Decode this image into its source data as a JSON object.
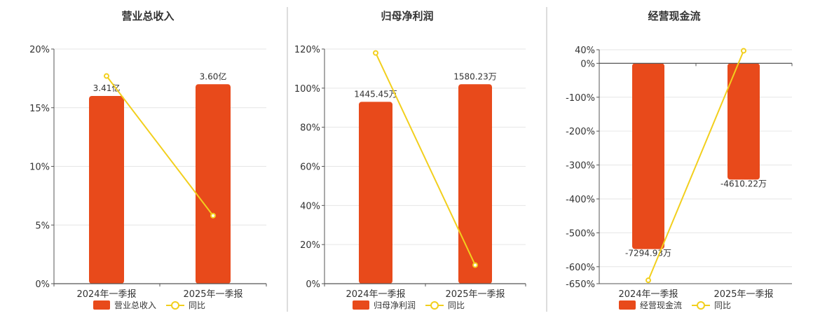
{
  "colors": {
    "bar": "#E84A1B",
    "line": "#F2CF1D",
    "grid": "#E6E6E6",
    "axis": "#555555",
    "divider": "#BBBBBB"
  },
  "chart_data": [
    {
      "type": "bar",
      "title": "营业总收入",
      "categories": [
        "2024年一季报",
        "2025年一季报"
      ],
      "y_ticks": [
        "0%",
        "5%",
        "10%",
        "15%",
        "20%"
      ],
      "ylim": [
        0,
        20
      ],
      "series": [
        {
          "name": "营业总收入",
          "kind": "bar",
          "values": [
            16.0,
            17.0
          ],
          "labels": [
            "3.41亿",
            "3.60亿"
          ]
        },
        {
          "name": "同比",
          "kind": "line",
          "values": [
            17.7,
            5.8
          ]
        }
      ],
      "legend": "bottom"
    },
    {
      "type": "bar",
      "title": "归母净利润",
      "categories": [
        "2024年一季报",
        "2025年一季报"
      ],
      "y_ticks": [
        "0%",
        "20%",
        "40%",
        "60%",
        "80%",
        "100%",
        "120%"
      ],
      "ylim": [
        0,
        120
      ],
      "series": [
        {
          "name": "归母净利润",
          "kind": "bar",
          "values": [
            93.0,
            102.0
          ],
          "labels": [
            "1445.45万",
            "1580.23万"
          ]
        },
        {
          "name": "同比",
          "kind": "line",
          "values": [
            118.0,
            9.5
          ]
        }
      ],
      "legend": "bottom"
    },
    {
      "type": "bar",
      "title": "经营现金流",
      "categories": [
        "2024年一季报",
        "2025年一季报"
      ],
      "y_ticks": [
        "-650%",
        "-600%",
        "-500%",
        "-400%",
        "-300%",
        "-200%",
        "-100%",
        "0%",
        "40%"
      ],
      "y_tick_values": [
        -650,
        -600,
        -500,
        -400,
        -300,
        -200,
        -100,
        0,
        40
      ],
      "ylim": [
        -650,
        40
      ],
      "series": [
        {
          "name": "经营现金流",
          "kind": "bar",
          "values": [
            -548,
            -343
          ],
          "labels": [
            "-7294.93万",
            "-4610.22万"
          ]
        },
        {
          "name": "同比",
          "kind": "line",
          "values": [
            -640,
            37
          ]
        }
      ],
      "legend": "bottom"
    }
  ]
}
